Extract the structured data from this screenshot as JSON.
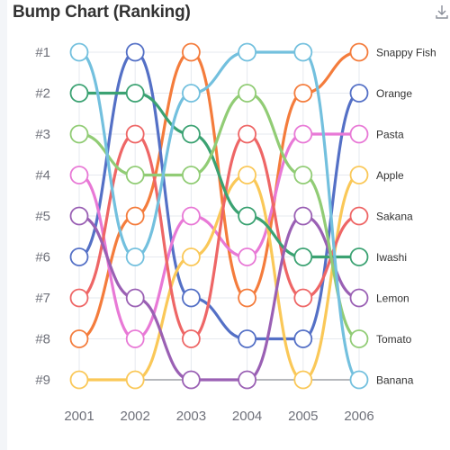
{
  "title": "Bump Chart (Ranking)",
  "icons": {
    "download": "download-icon"
  },
  "chart_data": {
    "type": "line",
    "subtype": "bump",
    "title": "Bump Chart (Ranking)",
    "x": [
      "2001",
      "2002",
      "2003",
      "2004",
      "2005",
      "2006"
    ],
    "y_tick_labels": [
      "#1",
      "#2",
      "#3",
      "#4",
      "#5",
      "#6",
      "#7",
      "#8",
      "#9"
    ],
    "y_inverted": true,
    "ylim": [
      1,
      9
    ],
    "grid": true,
    "legend": "end-labels-right",
    "series": [
      {
        "name": "Snappy Fish",
        "color": "#f47c3c",
        "values": [
          8,
          5,
          1,
          7,
          2,
          1
        ]
      },
      {
        "name": "Orange",
        "color": "#5470c6",
        "values": [
          6,
          1,
          7,
          8,
          8,
          2
        ]
      },
      {
        "name": "Pasta",
        "color": "#e879d6",
        "values": [
          4,
          8,
          5,
          6,
          3,
          3
        ]
      },
      {
        "name": "Apple",
        "color": "#fac858",
        "values": [
          9,
          9,
          6,
          4,
          9,
          4
        ]
      },
      {
        "name": "Sakana",
        "color": "#ee6666",
        "values": [
          7,
          3,
          8,
          3,
          7,
          5
        ]
      },
      {
        "name": "Iwashi",
        "color": "#3ba272",
        "values": [
          2,
          2,
          3,
          5,
          6,
          6
        ]
      },
      {
        "name": "Lemon",
        "color": "#9a60b4",
        "values": [
          5,
          7,
          9,
          9,
          5,
          7
        ]
      },
      {
        "name": "Tomato",
        "color": "#91cc75",
        "values": [
          3,
          4,
          4,
          2,
          4,
          8
        ]
      },
      {
        "name": "Banana",
        "color": "#73c0de",
        "values": [
          1,
          6,
          2,
          1,
          1,
          9
        ]
      }
    ]
  }
}
